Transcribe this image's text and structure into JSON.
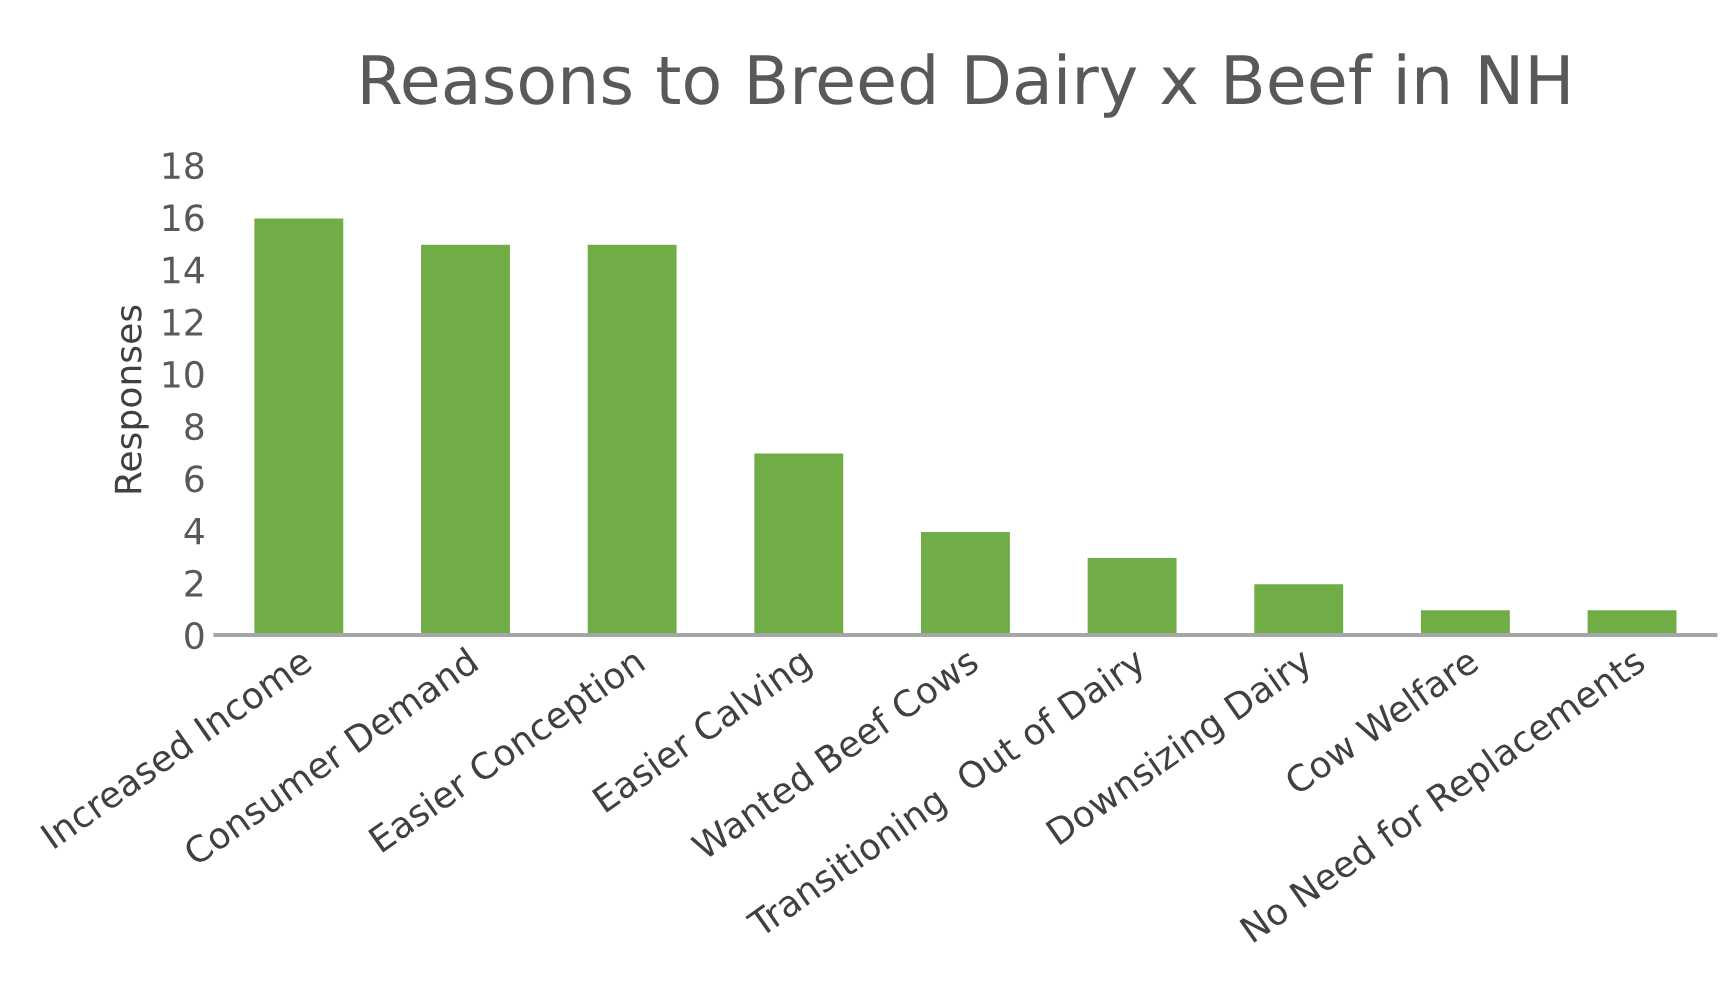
{
  "chart_data": {
    "type": "bar",
    "title": "Reasons to Breed Dairy x Beef in NH",
    "ylabel": "Responses",
    "categories": [
      "Increased Income",
      "Consumer Demand",
      "Easier Conception",
      "Easier Calving",
      "Wanted Beef Cows",
      "Transitioning  Out of Dairy",
      "Downsizing Dairy",
      "Cow Welfare",
      "No Need for Replacements"
    ],
    "values": [
      16,
      15,
      15,
      7,
      4,
      3,
      2,
      1,
      1
    ],
    "color": "#70ad47",
    "ylim": [
      0,
      18
    ],
    "yticks": [
      0,
      2,
      4,
      6,
      8,
      10,
      12,
      14,
      16,
      18
    ],
    "grid": false,
    "legend": false
  }
}
